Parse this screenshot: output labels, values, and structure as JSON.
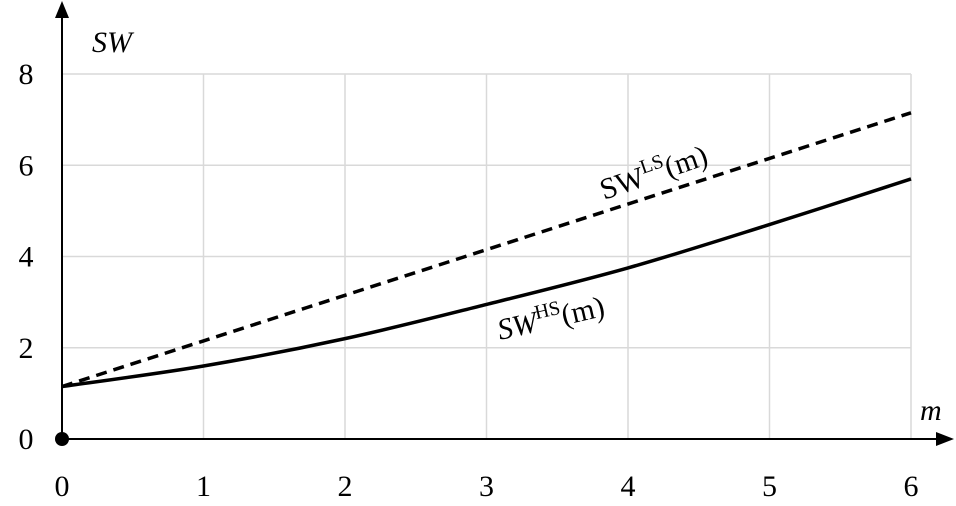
{
  "chart_data": {
    "type": "line",
    "xlabel": "m",
    "ylabel": "SW",
    "xlim": [
      0,
      6
    ],
    "ylim": [
      0,
      8
    ],
    "x_ticks": [
      "0",
      "1",
      "2",
      "3",
      "4",
      "5",
      "6"
    ],
    "y_ticks": [
      "0",
      "2",
      "4",
      "6",
      "8"
    ],
    "grid": true,
    "series": [
      {
        "name": "SW^LS(m)",
        "label_base": "SW",
        "label_sup": "LS",
        "label_arg": "(m)",
        "style": "dashed",
        "color": "#000000",
        "x": [
          0,
          1,
          2,
          3,
          4,
          5,
          6
        ],
        "y": [
          1.15,
          2.15,
          3.15,
          4.15,
          5.15,
          6.15,
          7.15
        ]
      },
      {
        "name": "SW^HS(m)",
        "label_base": "SW",
        "label_sup": "HS",
        "label_arg": "(m)",
        "style": "solid",
        "color": "#000000",
        "x": [
          0,
          1,
          2,
          3,
          4,
          5,
          6
        ],
        "y": [
          1.15,
          1.6,
          2.2,
          2.95,
          3.75,
          4.7,
          5.7
        ]
      }
    ]
  }
}
